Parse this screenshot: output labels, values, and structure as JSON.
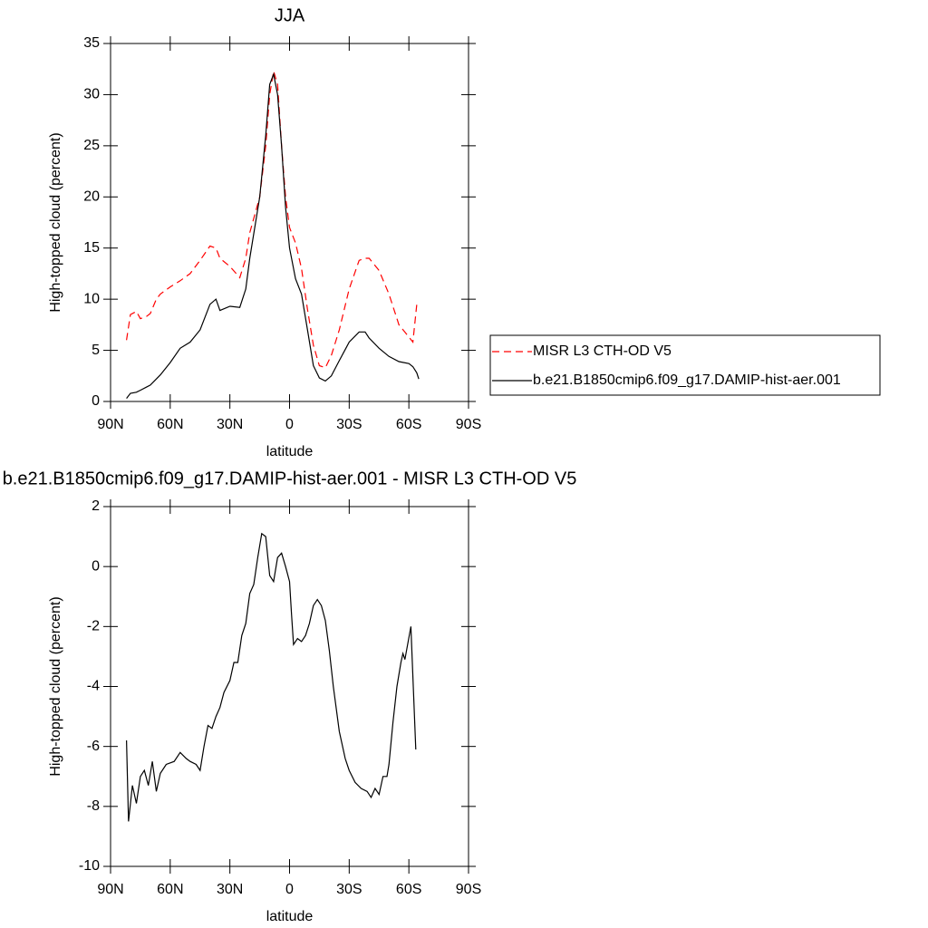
{
  "chart_data": [
    {
      "type": "line",
      "title": "JJA",
      "x_label": "latitude",
      "y_label": "High-topped cloud (percent)",
      "x": [
        82,
        80,
        77,
        75,
        72,
        70,
        67,
        65,
        60,
        55,
        50,
        45,
        40,
        37,
        35,
        30,
        25,
        22,
        20,
        15,
        12,
        10,
        8,
        6,
        4,
        2,
        0,
        -3,
        -6,
        -9,
        -12,
        -15,
        -18,
        -21,
        -25,
        -30,
        -35,
        -38,
        -40,
        -45,
        -50,
        -55,
        -60,
        -62,
        -64,
        -65
      ],
      "series": [
        {
          "name": "MISR L3 CTH-OD V5",
          "color": "#ff0000",
          "dashed": true,
          "values": [
            6.0,
            8.5,
            8.8,
            8.1,
            8.3,
            8.6,
            10.0,
            10.5,
            11.2,
            11.8,
            12.5,
            13.8,
            15.2,
            15.0,
            14.0,
            13.2,
            12.1,
            14.0,
            16.5,
            20,
            25,
            30,
            32.3,
            31,
            25,
            20,
            17,
            15.5,
            13,
            9,
            5.5,
            3.5,
            3.3,
            4.5,
            7,
            11,
            13.8,
            14,
            14,
            12.8,
            10.5,
            7.5,
            6.3,
            5.8,
            9.5,
            null
          ]
        },
        {
          "name": "b.e21.B1850cmip6.f09_g17.DAMIP-hist-aer.001",
          "color": "#000000",
          "dashed": false,
          "values": [
            0.3,
            0.8,
            0.9,
            1.1,
            1.4,
            1.6,
            2.2,
            2.6,
            3.8,
            5.2,
            5.8,
            7.0,
            9.5,
            10.0,
            8.9,
            9.3,
            9.2,
            11,
            14,
            20,
            26,
            31,
            32,
            30,
            25,
            19,
            15,
            12,
            10.5,
            7,
            3.5,
            2.3,
            2.0,
            2.5,
            4,
            5.8,
            6.8,
            6.8,
            6.2,
            5.2,
            4.4,
            3.9,
            3.7,
            3.4,
            2.8,
            2.2
          ]
        }
      ],
      "xlim": [
        90,
        -90
      ],
      "xticks": [
        {
          "value": 90,
          "label": "90N"
        },
        {
          "value": 60,
          "label": "60N"
        },
        {
          "value": 30,
          "label": "30N"
        },
        0,
        {
          "value": -30,
          "label": "30S"
        },
        {
          "value": -60,
          "label": "60S"
        },
        {
          "value": -90,
          "label": "90S"
        }
      ],
      "ylim": [
        0,
        35
      ],
      "yticks": [
        0,
        5,
        10,
        15,
        20,
        25,
        30,
        35
      ],
      "legend": "right"
    },
    {
      "type": "line",
      "title": "b.e21.B1850cmip6.f09_g17.DAMIP-hist-aer.001 - MISR L3 CTH-OD V5",
      "x_label": "latitude",
      "y_label": "High-topped cloud (percent)",
      "x": [
        82,
        81,
        79,
        77,
        75,
        73,
        71,
        69,
        67,
        65,
        62,
        58,
        55,
        52,
        50,
        47,
        45,
        43,
        41,
        39,
        37,
        35,
        33,
        30,
        28,
        26,
        24,
        22,
        20,
        18,
        16,
        14,
        12,
        10,
        8,
        6,
        4,
        2,
        0,
        -1,
        -2,
        -4,
        -6,
        -8,
        -10,
        -12,
        -14,
        -16,
        -18,
        -20,
        -22,
        -25,
        -28,
        -30,
        -33,
        -36,
        -39,
        -41,
        -43,
        -45,
        -47,
        -49,
        -50,
        -52,
        -54,
        -56,
        -57,
        -58,
        -61,
        -63.5
      ],
      "series": [
        {
          "color": "#000000",
          "dashed": false,
          "values": [
            -5.8,
            -8.5,
            -7.3,
            -7.9,
            -7.0,
            -6.8,
            -7.3,
            -6.5,
            -7.5,
            -6.9,
            -6.6,
            -6.5,
            -6.2,
            -6.4,
            -6.5,
            -6.6,
            -6.8,
            -6.0,
            -5.3,
            -5.4,
            -5.0,
            -4.7,
            -4.2,
            -3.8,
            -3.2,
            -3.2,
            -2.3,
            -1.9,
            -0.9,
            -0.6,
            0.3,
            1.1,
            1.0,
            -0.3,
            -0.5,
            0.3,
            0.45,
            0,
            -0.5,
            -1.6,
            -2.6,
            -2.4,
            -2.5,
            -2.3,
            -1.9,
            -1.3,
            -1.1,
            -1.3,
            -1.8,
            -2.8,
            -4.0,
            -5.5,
            -6.4,
            -6.8,
            -7.2,
            -7.4,
            -7.5,
            -7.7,
            -7.4,
            -7.6,
            -7.0,
            -7.0,
            -6.6,
            -5.2,
            -4.0,
            -3.2,
            -2.9,
            -3.1,
            -2.0,
            -6.1
          ]
        }
      ],
      "xlim": [
        90,
        -90
      ],
      "xticks": [
        {
          "value": 90,
          "label": "90N"
        },
        {
          "value": 60,
          "label": "60N"
        },
        {
          "value": 30,
          "label": "30N"
        },
        0,
        {
          "value": -30,
          "label": "30S"
        },
        {
          "value": -60,
          "label": "60S"
        },
        {
          "value": -90,
          "label": "90S"
        }
      ],
      "ylim": [
        -10,
        2
      ],
      "yticks": [
        -10,
        -8,
        -6,
        -4,
        -2,
        0,
        2
      ]
    }
  ]
}
